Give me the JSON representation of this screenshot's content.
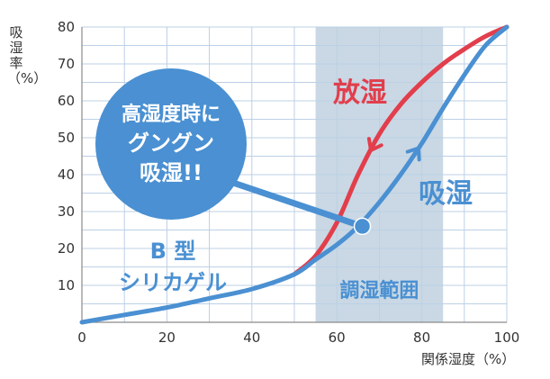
{
  "chart_data": {
    "type": "line",
    "title": "",
    "xlabel": "関係湿度（%）",
    "ylabel": "吸湿率（%）",
    "xlim": [
      0,
      100
    ],
    "ylim": [
      0,
      80
    ],
    "x_ticks": [
      "0",
      "20",
      "40",
      "60",
      "80",
      "100"
    ],
    "y_ticks": [
      "10",
      "20",
      "30",
      "40",
      "50",
      "60",
      "70",
      "80"
    ],
    "grid": true,
    "band": {
      "x_range": [
        55,
        85
      ],
      "label": "調湿範囲"
    },
    "series": [
      {
        "name": "吸湿",
        "color": "#4a90d2",
        "x": [
          0,
          10,
          20,
          30,
          40,
          50,
          55,
          60,
          65,
          70,
          75,
          80,
          85,
          90,
          95,
          100
        ],
        "y": [
          0,
          2,
          4,
          6.5,
          9,
          13,
          17,
          21,
          26,
          32.5,
          40,
          48.5,
          58,
          67,
          75,
          80
        ]
      },
      {
        "name": "放湿",
        "color": "#e23e4c",
        "x": [
          50,
          55,
          60,
          65,
          70,
          75,
          80,
          85,
          90,
          95,
          100
        ],
        "y": [
          13,
          18,
          27,
          40,
          51,
          59,
          65,
          70,
          74,
          77.5,
          80
        ]
      }
    ],
    "annotations": {
      "callout_line1": "高湿度時に",
      "callout_line2": "グングン",
      "callout_line3": "吸湿!!",
      "callout_point": [
        66,
        26
      ],
      "product_line1": "B 型",
      "product_line2": "シリカゲル"
    }
  }
}
